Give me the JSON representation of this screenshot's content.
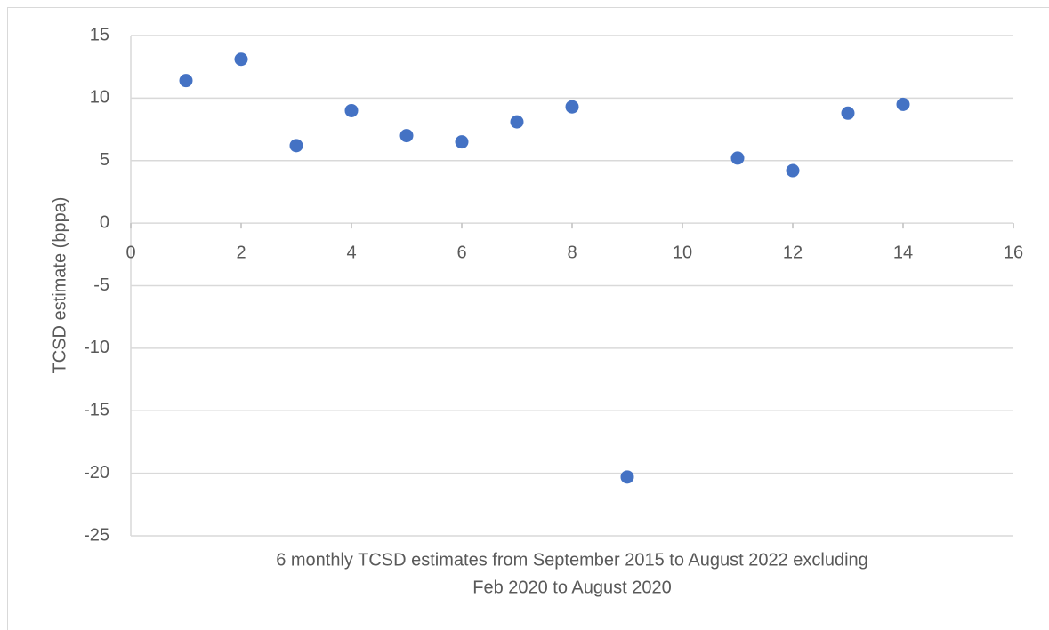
{
  "chart_data": {
    "type": "scatter",
    "x_label": [
      "6 monthly TCSD estimates from September 2015 to August 2022 excluding",
      "Feb 2020 to August 2020"
    ],
    "y_label": "TCSD estimate (bppa)",
    "x": [
      1,
      2,
      3,
      4,
      5,
      6,
      7,
      8,
      9,
      11,
      12,
      13,
      14
    ],
    "values": [
      11.4,
      13.1,
      6.2,
      9.0,
      7.0,
      6.5,
      8.1,
      9.3,
      -20.3,
      5.2,
      4.2,
      8.8,
      9.5
    ],
    "color": "#4472c4",
    "xlim": [
      0,
      16
    ],
    "xticks": [
      0,
      2,
      4,
      6,
      8,
      10,
      12,
      14,
      16
    ],
    "ylim": [
      -25,
      15
    ],
    "yticks": [
      -25,
      -20,
      -15,
      -10,
      -5,
      0,
      5,
      10,
      15
    ],
    "grid": true
  }
}
